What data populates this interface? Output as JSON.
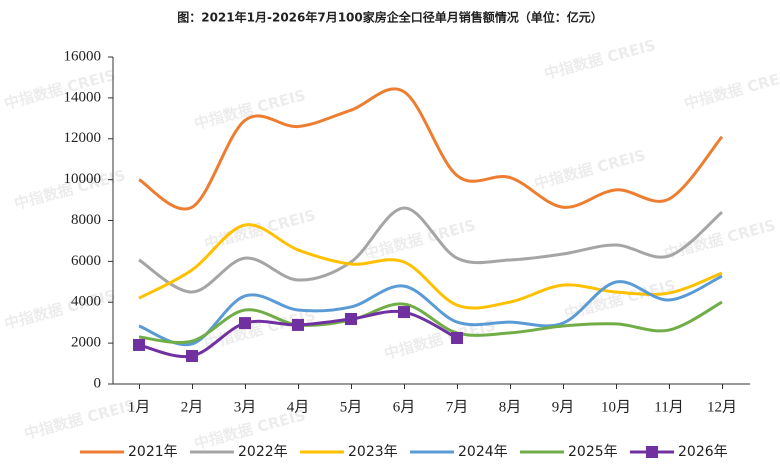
{
  "chart_data": {
    "type": "line",
    "title": "图：2021年1月-2026年7月100家房企全口径单月销售额情况（单位：亿元）",
    "watermark": "中指数据 CREIS",
    "categories": [
      "1月",
      "2月",
      "3月",
      "4月",
      "5月",
      "6月",
      "7月",
      "8月",
      "9月",
      "10月",
      "11月",
      "12月"
    ],
    "series": [
      {
        "name": "2021年",
        "color": "#ED7D31",
        "values": [
          10000,
          8650,
          12900,
          12600,
          13400,
          14300,
          10200,
          10100,
          8650,
          9500,
          9050,
          12100
        ]
      },
      {
        "name": "2022年",
        "color": "#A5A5A5",
        "values": [
          6070,
          4500,
          6160,
          5090,
          5970,
          8610,
          6160,
          6070,
          6360,
          6800,
          6260,
          8410
        ]
      },
      {
        "name": "2023年",
        "color": "#FFC000",
        "values": [
          4200,
          5580,
          7780,
          6560,
          5870,
          5970,
          3860,
          4010,
          4840,
          4500,
          4450,
          5430
        ]
      },
      {
        "name": "2024年",
        "color": "#5B9BD5",
        "values": [
          2840,
          1960,
          4310,
          3620,
          3770,
          4790,
          3030,
          3030,
          2980,
          4990,
          4110,
          5280
        ]
      },
      {
        "name": "2025年",
        "color": "#70AD47",
        "values": [
          2300,
          2100,
          3620,
          2890,
          3130,
          3910,
          2500,
          2500,
          2840,
          2940,
          2640,
          4010
        ]
      },
      {
        "name": "2026年",
        "color": "#7030A0",
        "marker": "square",
        "values": [
          1910,
          1370,
          2980,
          2890,
          3180,
          3520,
          2250,
          null,
          null,
          null,
          null,
          null
        ]
      }
    ],
    "ylim": [
      0,
      16000
    ],
    "yticks": [
      0,
      2000,
      4000,
      6000,
      8000,
      10000,
      12000,
      14000,
      16000
    ],
    "legend": "bottom"
  }
}
